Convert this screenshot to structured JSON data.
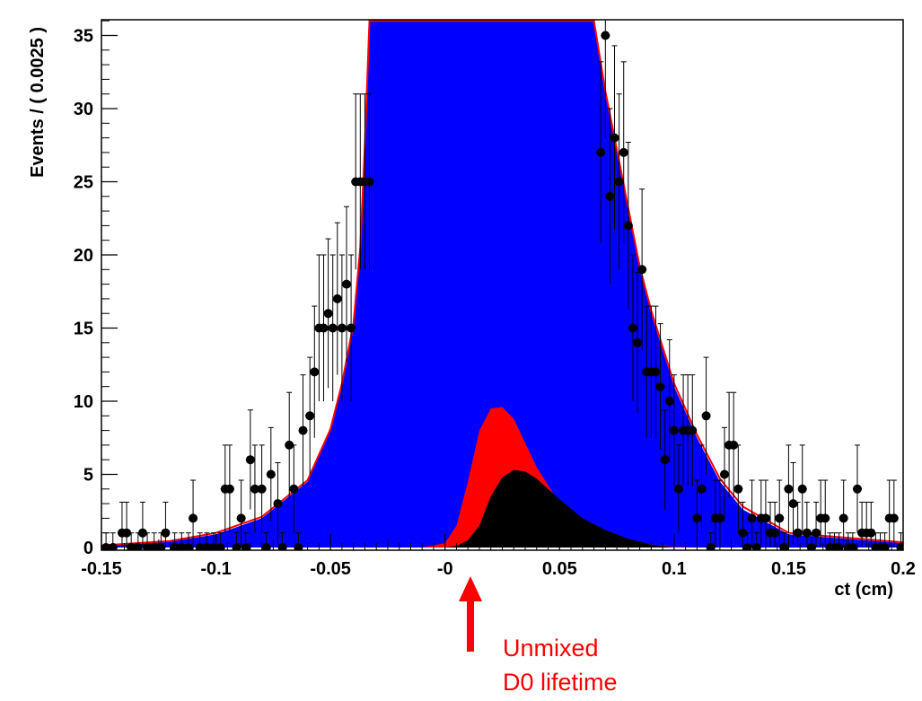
{
  "chart_data": {
    "type": "area",
    "title": "",
    "xlabel": "ct (cm)",
    "ylabel": "Events / ( 0.0025 )",
    "xlim": [
      -0.15,
      0.2
    ],
    "ylim": [
      0,
      36
    ],
    "x_ticks": [
      -0.15,
      -0.1,
      -0.05,
      0,
      0.05,
      0.1,
      0.15,
      0.2
    ],
    "x_tick_labels": [
      "-0.15",
      "-0.1",
      "-0.05",
      "-0",
      "0.05",
      "0.1",
      "0.15",
      "0.2"
    ],
    "y_ticks": [
      0,
      5,
      10,
      15,
      20,
      25,
      30,
      35
    ],
    "y_tick_labels": [
      "0",
      "5",
      "10",
      "15",
      "20",
      "25",
      "30",
      "35"
    ],
    "grid": false,
    "legend": "none",
    "colors": {
      "total_pdf_line": "#ff0000",
      "blue_band": "#0000ff",
      "green_band": "#00ff00",
      "yellow_band": "#ffff00",
      "red_component": "#ff0000",
      "black_component": "#000000",
      "data_points": "#000000",
      "annotation": "#ff0000"
    },
    "stacked_components": [
      {
        "color": "#ffff00",
        "x": [
          -0.15,
          -0.1,
          -0.07,
          -0.05,
          -0.04,
          -0.03,
          -0.025,
          -0.02,
          -0.015,
          -0.012,
          -0.01,
          0,
          0.01,
          0.02,
          0.03,
          0.04,
          0.045,
          0.05,
          0.055,
          0.06,
          0.07,
          0.08,
          0.09,
          0.1,
          0.11,
          0.13,
          0.15,
          0.2
        ],
        "y": [
          0,
          0,
          0.05,
          0.15,
          0.3,
          0.8,
          1.5,
          3,
          8,
          20,
          36,
          36,
          36,
          36,
          36,
          36,
          36,
          36,
          30,
          22,
          15,
          10,
          6.5,
          4,
          2.5,
          0.8,
          0.2,
          0
        ]
      },
      {
        "color": "#00ff00",
        "x": [
          -0.15,
          -0.12,
          -0.1,
          -0.08,
          -0.06,
          -0.05,
          -0.04,
          -0.035,
          -0.03,
          -0.028,
          -0.026,
          0,
          0.06,
          0.065,
          0.07,
          0.075,
          0.08,
          0.09,
          0.1,
          0.11,
          0.12,
          0.13,
          0.15,
          0.2
        ],
        "y": [
          0,
          0.2,
          0.6,
          1.5,
          3.5,
          6,
          11,
          16,
          26,
          32,
          36,
          36,
          36,
          31,
          26,
          22,
          18,
          13,
          8.5,
          5.5,
          3.2,
          1.8,
          0.5,
          0
        ]
      },
      {
        "color": "#0000ff",
        "x": [
          -0.15,
          -0.12,
          -0.1,
          -0.08,
          -0.06,
          -0.05,
          -0.045,
          -0.04,
          -0.037,
          -0.035,
          -0.033,
          0,
          0.065,
          0.07,
          0.075,
          0.08,
          0.085,
          0.09,
          0.1,
          0.11,
          0.12,
          0.13,
          0.15,
          0.2
        ],
        "y": [
          0.1,
          0.4,
          0.9,
          2,
          4.5,
          8,
          11,
          15,
          20,
          27,
          36,
          36,
          36,
          31,
          27,
          23,
          19,
          16,
          11,
          7.5,
          4.5,
          2.6,
          0.9,
          0.3
        ]
      },
      {
        "color": "#ff0000",
        "x": [
          -0.01,
          0,
          0.005,
          0.01,
          0.015,
          0.02,
          0.025,
          0.03,
          0.04,
          0.05,
          0.06,
          0.07,
          0.08,
          0.09,
          0.1,
          0.11
        ],
        "y": [
          0,
          0.3,
          1.5,
          4.5,
          8,
          9.5,
          9.6,
          8.8,
          5.5,
          3,
          1.6,
          0.8,
          0.4,
          0.2,
          0.05,
          0
        ]
      },
      {
        "color": "#000000",
        "x": [
          0,
          0.005,
          0.01,
          0.015,
          0.02,
          0.025,
          0.03,
          0.035,
          0.04,
          0.05,
          0.06,
          0.07,
          0.08,
          0.09,
          0.1
        ],
        "y": [
          0,
          0.1,
          0.5,
          1.5,
          3.5,
          4.8,
          5.3,
          5.2,
          4.7,
          3.3,
          2,
          1.2,
          0.6,
          0.2,
          0
        ]
      }
    ],
    "total_curve": {
      "color": "#ff0000",
      "x": [
        -0.15,
        -0.12,
        -0.1,
        -0.08,
        -0.06,
        -0.05,
        -0.045,
        -0.04,
        -0.037,
        -0.035,
        -0.033,
        0.065,
        0.07,
        0.075,
        0.08,
        0.085,
        0.09,
        0.1,
        0.11,
        0.12,
        0.13,
        0.15,
        0.2
      ],
      "y": [
        0.15,
        0.45,
        1,
        2.1,
        4.6,
        8.1,
        11.2,
        15.3,
        20.5,
        27.5,
        36,
        36,
        31.2,
        27.2,
        23.2,
        19.2,
        16.2,
        11.2,
        7.7,
        4.7,
        2.8,
        1,
        0.35
      ]
    },
    "series": [
      {
        "x": [
          -0.148,
          -0.145,
          -0.141,
          -0.139,
          -0.137,
          -0.134,
          -0.132,
          -0.13,
          -0.127,
          -0.124,
          -0.122,
          -0.118,
          -0.115,
          -0.112,
          -0.11,
          -0.107,
          -0.104,
          -0.101,
          -0.098,
          -0.096,
          -0.094,
          -0.091,
          -0.089,
          -0.087,
          -0.085,
          -0.083,
          -0.08,
          -0.078,
          -0.076,
          -0.073,
          -0.071,
          -0.068,
          -0.066,
          -0.064,
          -0.062,
          -0.059,
          -0.057,
          -0.055,
          -0.053,
          -0.051,
          -0.049,
          -0.047,
          -0.045,
          -0.043,
          -0.041,
          -0.039,
          -0.037,
          -0.035,
          -0.033,
          0.068,
          0.07,
          0.072,
          0.074,
          0.076,
          0.078,
          0.08,
          0.082,
          0.084,
          0.086,
          0.088,
          0.09,
          0.092,
          0.094,
          0.096,
          0.098,
          0.1,
          0.102,
          0.104,
          0.106,
          0.108,
          0.11,
          0.112,
          0.114,
          0.116,
          0.118,
          0.12,
          0.122,
          0.124,
          0.126,
          0.128,
          0.13,
          0.132,
          0.134,
          0.136,
          0.138,
          0.14,
          0.142,
          0.144,
          0.146,
          0.148,
          0.15,
          0.152,
          0.154,
          0.156,
          0.158,
          0.16,
          0.162,
          0.164,
          0.166,
          0.168,
          0.17,
          0.172,
          0.174,
          0.176,
          0.178,
          0.18,
          0.182,
          0.184,
          0.186,
          0.188,
          0.19,
          0.192,
          0.194,
          0.196,
          0.199
        ],
        "y": [
          0,
          0,
          1,
          1,
          0,
          0,
          1,
          0,
          0,
          0,
          1,
          0,
          0,
          0,
          2,
          0,
          0,
          0,
          0,
          4,
          4,
          0,
          2,
          0,
          6,
          4,
          4,
          0,
          5,
          3,
          0,
          7,
          4,
          0,
          8,
          9,
          12,
          15,
          15,
          16,
          15,
          17,
          15,
          18,
          15,
          25,
          25,
          25,
          25,
          27,
          35,
          24,
          28,
          25,
          27,
          22,
          15,
          14,
          19,
          12,
          12,
          12,
          11,
          6,
          10,
          8,
          4,
          8,
          8,
          8,
          2,
          4,
          9,
          0,
          2,
          2,
          5,
          7,
          7,
          4,
          1,
          0,
          2,
          0,
          2,
          2,
          1,
          1,
          2,
          0,
          4,
          3,
          1,
          4,
          1,
          0,
          1,
          2,
          2,
          0,
          0,
          0,
          2,
          0,
          0,
          4,
          1,
          1,
          1,
          0,
          0,
          0,
          2,
          2,
          0
        ],
        "yerr": [
          1,
          1,
          2.1,
          2.1,
          1,
          1,
          2.1,
          1,
          1,
          1,
          2.1,
          1,
          1,
          1,
          2.6,
          1,
          1,
          1,
          1,
          3,
          3,
          1,
          2.6,
          1,
          3.4,
          3,
          3,
          1,
          3.2,
          2.8,
          1,
          3.6,
          3,
          1,
          3.8,
          4,
          4.5,
          5,
          5,
          5.1,
          5,
          5.2,
          5,
          5.3,
          5,
          6,
          6,
          6,
          6,
          6.2,
          7,
          6,
          6.3,
          6,
          6.2,
          5.7,
          5,
          4.8,
          5.5,
          4.5,
          4.5,
          4.5,
          4.3,
          3.4,
          4.2,
          3.8,
          3,
          3.8,
          3.8,
          3.8,
          2.6,
          3,
          4,
          1,
          2.6,
          2.6,
          3.2,
          3.6,
          3.6,
          3,
          2.1,
          1,
          2.6,
          1,
          2.6,
          2.6,
          2.1,
          2.1,
          2.6,
          1,
          3,
          2.8,
          2.1,
          3,
          2.1,
          1,
          2.1,
          2.6,
          2.6,
          1,
          1,
          1,
          2.6,
          1,
          1,
          3,
          2.1,
          2.1,
          2.1,
          1,
          1,
          1,
          2.6,
          2.6,
          1
        ]
      }
    ],
    "annotation": {
      "text_lines": [
        "Unmixed",
        "D0 lifetime"
      ],
      "arrow_x": 0.015
    }
  }
}
